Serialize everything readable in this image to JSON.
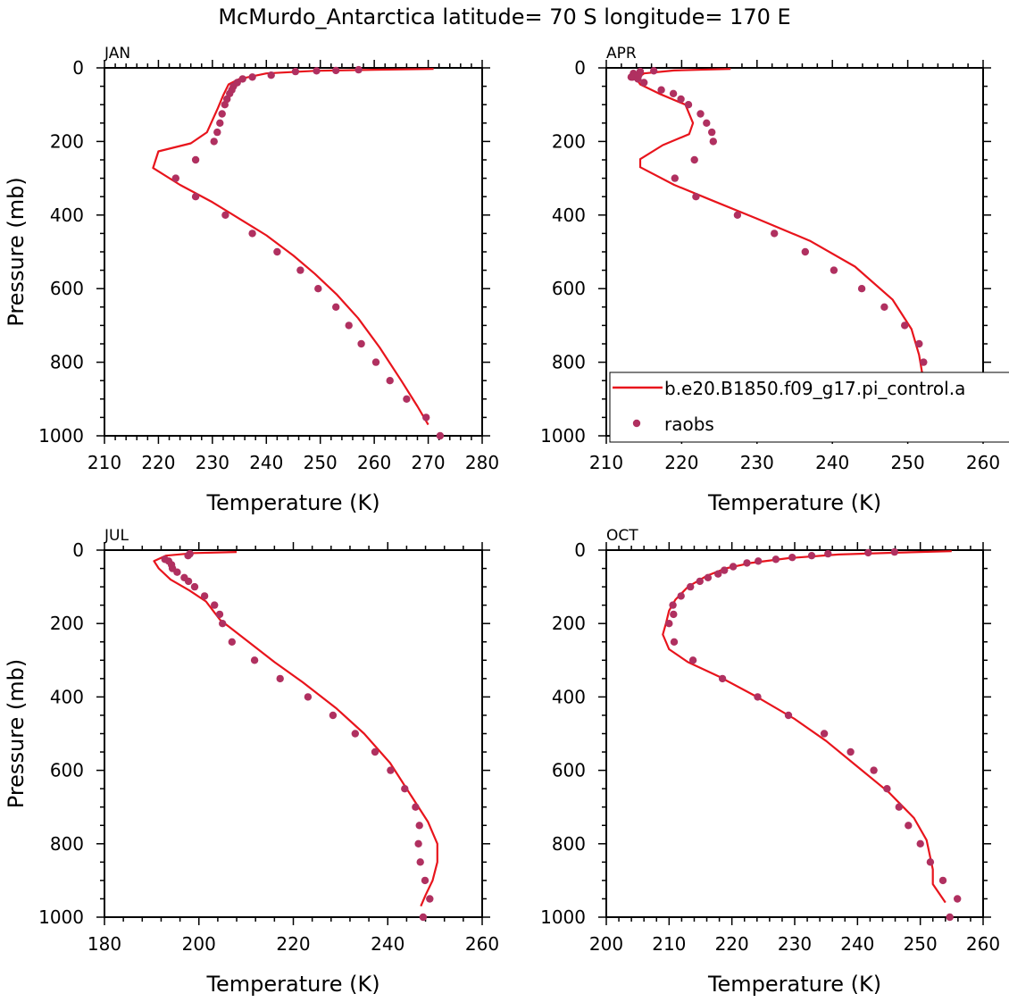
{
  "figure": {
    "title": "McMurdo_Antarctica  latitude= 70 S longitude= 170 E"
  },
  "colors": {
    "model_line": "#e8141c",
    "raobs_marker": "#b03060",
    "axes": "#000000"
  },
  "legend": {
    "model_label": "b.e20.B1850.f09_g17.pi_control.a",
    "raobs_label": "raobs"
  },
  "chart_data": [
    {
      "type": "scatter",
      "panel": "JAN",
      "title": "JAN",
      "xlabel": "Temperature (K)",
      "ylabel": "Pressure (mb)",
      "xlim": [
        210,
        280
      ],
      "ylim": [
        0,
        1000
      ],
      "y_inverted": true,
      "x_ticks": [
        210,
        220,
        230,
        240,
        250,
        260,
        270,
        280
      ],
      "y_ticks": [
        0,
        200,
        400,
        600,
        800,
        1000
      ],
      "series": [
        {
          "name": "b.e20.B1850.f09_g17.pi_control.a",
          "kind": "line",
          "points": [
            [
              271,
              3
            ],
            [
              260,
              5
            ],
            [
              249,
              8
            ],
            [
              240,
              15
            ],
            [
              235,
              30
            ],
            [
              233,
              45
            ],
            [
              232,
              75
            ],
            [
              231,
              110
            ],
            [
              229,
              175
            ],
            [
              226,
              205
            ],
            [
              220,
              227
            ],
            [
              219,
              272
            ],
            [
              224,
              318
            ],
            [
              230,
              365
            ],
            [
              235,
              410
            ],
            [
              240,
              455
            ],
            [
              245,
              510
            ],
            [
              249,
              560
            ],
            [
              253,
              615
            ],
            [
              257,
              680
            ],
            [
              261,
              760
            ],
            [
              265,
              850
            ],
            [
              268,
              920
            ],
            [
              270,
              970
            ]
          ]
        },
        {
          "name": "raobs",
          "kind": "scatter",
          "points": [
            [
              272.2,
              1000
            ],
            [
              269.6,
              950
            ],
            [
              266.0,
              900
            ],
            [
              262.9,
              850
            ],
            [
              260.3,
              800
            ],
            [
              257.6,
              750
            ],
            [
              255.3,
              700
            ],
            [
              252.9,
              650
            ],
            [
              249.6,
              600
            ],
            [
              246.3,
              550
            ],
            [
              242.0,
              500
            ],
            [
              237.4,
              450
            ],
            [
              232.4,
              400
            ],
            [
              226.9,
              350
            ],
            [
              223.2,
              300
            ],
            [
              226.9,
              250
            ],
            [
              230.3,
              200
            ],
            [
              230.9,
              175
            ],
            [
              231.4,
              150
            ],
            [
              231.8,
              125
            ],
            [
              232.3,
              100
            ],
            [
              232.7,
              85
            ],
            [
              233.2,
              70
            ],
            [
              233.6,
              60
            ],
            [
              233.9,
              50
            ],
            [
              234.6,
              40
            ],
            [
              235.6,
              30
            ],
            [
              237.4,
              25
            ],
            [
              240.9,
              20
            ],
            [
              245.4,
              10
            ],
            [
              249.3,
              8
            ],
            [
              252.9,
              7
            ],
            [
              257.1,
              5
            ]
          ]
        }
      ]
    },
    {
      "type": "scatter",
      "panel": "APR",
      "title": "APR",
      "xlabel": "Temperature (K)",
      "ylabel": "",
      "xlim": [
        210,
        260
      ],
      "ylim": [
        0,
        1000
      ],
      "y_inverted": true,
      "x_ticks": [
        210,
        220,
        230,
        240,
        250,
        260
      ],
      "y_ticks": [
        0,
        200,
        400,
        600,
        800,
        1000
      ],
      "legend_position": "bottom-right",
      "series": [
        {
          "name": "b.e20.B1850.f09_g17.pi_control.a",
          "kind": "line",
          "points": [
            [
              226.5,
              3
            ],
            [
              219,
              7
            ],
            [
              215,
              15
            ],
            [
              214,
              30
            ],
            [
              214.5,
              45
            ],
            [
              217,
              70
            ],
            [
              220.5,
              100
            ],
            [
              221.5,
              150
            ],
            [
              221,
              180
            ],
            [
              217.5,
              210
            ],
            [
              214.5,
              248
            ],
            [
              214.5,
              270
            ],
            [
              219,
              318
            ],
            [
              224,
              360
            ],
            [
              230,
              410
            ],
            [
              237,
              470
            ],
            [
              243,
              540
            ],
            [
              248,
              630
            ],
            [
              250.5,
              710
            ],
            [
              251.5,
              780
            ],
            [
              252,
              840
            ],
            [
              251,
              900
            ],
            [
              250,
              940
            ],
            [
              250,
              970
            ]
          ]
        },
        {
          "name": "raobs",
          "kind": "scatter",
          "points": [
            [
              256.2,
              1000
            ],
            [
              256.0,
              950
            ],
            [
              254.0,
              900
            ],
            [
              252.4,
              850
            ],
            [
              252.1,
              800
            ],
            [
              251.5,
              750
            ],
            [
              249.6,
              700
            ],
            [
              246.9,
              650
            ],
            [
              243.9,
              600
            ],
            [
              240.2,
              550
            ],
            [
              236.4,
              500
            ],
            [
              232.3,
              450
            ],
            [
              227.4,
              400
            ],
            [
              221.9,
              350
            ],
            [
              219.1,
              300
            ],
            [
              221.7,
              250
            ],
            [
              224.2,
              200
            ],
            [
              224.0,
              175
            ],
            [
              223.3,
              150
            ],
            [
              222.5,
              125
            ],
            [
              220.9,
              100
            ],
            [
              219.9,
              85
            ],
            [
              218.9,
              70
            ],
            [
              217.3,
              60
            ],
            [
              215.0,
              40
            ],
            [
              214.2,
              30
            ],
            [
              213.5,
              25
            ],
            [
              214.3,
              20
            ],
            [
              214.5,
              10
            ],
            [
              216.3,
              8
            ],
            [
              213.3,
              25
            ],
            [
              213.6,
              15
            ]
          ]
        }
      ]
    },
    {
      "type": "scatter",
      "panel": "JUL",
      "title": "JUL",
      "xlabel": "Temperature (K)",
      "ylabel": "Pressure (mb)",
      "xlim": [
        180,
        260
      ],
      "ylim": [
        0,
        1000
      ],
      "y_inverted": true,
      "x_ticks": [
        180,
        200,
        220,
        240,
        260
      ],
      "y_ticks": [
        0,
        200,
        400,
        600,
        800,
        1000
      ],
      "series": [
        {
          "name": "b.e20.B1850.f09_g17.pi_control.a",
          "kind": "line",
          "points": [
            [
              208,
              5
            ],
            [
              199,
              8
            ],
            [
              193,
              15
            ],
            [
              190.5,
              30
            ],
            [
              191.5,
              50
            ],
            [
              194,
              80
            ],
            [
              198,
              110
            ],
            [
              201.5,
              140
            ],
            [
              203,
              165
            ],
            [
              204.5,
              190
            ],
            [
              207,
              215
            ],
            [
              211,
              255
            ],
            [
              216,
              305
            ],
            [
              222,
              360
            ],
            [
              229,
              430
            ],
            [
              235,
              500
            ],
            [
              240.5,
              580
            ],
            [
              245,
              670
            ],
            [
              248.5,
              740
            ],
            [
              250.5,
              800
            ],
            [
              250.5,
              850
            ],
            [
              249.5,
              900
            ],
            [
              248,
              940
            ],
            [
              247,
              970
            ]
          ]
        },
        {
          "name": "raobs",
          "kind": "scatter",
          "points": [
            [
              247.5,
              1000
            ],
            [
              248.9,
              950
            ],
            [
              247.9,
              900
            ],
            [
              246.9,
              850
            ],
            [
              246.5,
              800
            ],
            [
              246.7,
              750
            ],
            [
              245.9,
              700
            ],
            [
              243.6,
              650
            ],
            [
              240.6,
              600
            ],
            [
              237.3,
              550
            ],
            [
              233.1,
              500
            ],
            [
              228.4,
              450
            ],
            [
              223.1,
              400
            ],
            [
              217.2,
              350
            ],
            [
              211.8,
              300
            ],
            [
              207.0,
              250
            ],
            [
              205.0,
              200
            ],
            [
              204.4,
              175
            ],
            [
              203.3,
              150
            ],
            [
              201.2,
              125
            ],
            [
              199.1,
              100
            ],
            [
              197.8,
              85
            ],
            [
              196.9,
              75
            ],
            [
              195.4,
              60
            ],
            [
              194.4,
              50
            ],
            [
              194.2,
              40
            ],
            [
              193.6,
              30
            ],
            [
              192.8,
              25
            ],
            [
              197.7,
              15
            ],
            [
              198.1,
              10
            ]
          ]
        }
      ]
    },
    {
      "type": "scatter",
      "panel": "OCT",
      "title": "OCT",
      "xlabel": "Temperature (K)",
      "ylabel": "",
      "xlim": [
        200,
        260
      ],
      "ylim": [
        0,
        1000
      ],
      "y_inverted": true,
      "x_ticks": [
        200,
        210,
        220,
        230,
        240,
        250,
        260
      ],
      "y_ticks": [
        0,
        200,
        400,
        600,
        800,
        1000
      ],
      "series": [
        {
          "name": "b.e20.B1850.f09_g17.pi_control.a",
          "kind": "line",
          "points": [
            [
              255,
              3
            ],
            [
              246,
              7
            ],
            [
              237,
              12
            ],
            [
              229,
              22
            ],
            [
              223,
              35
            ],
            [
              219,
              50
            ],
            [
              216,
              70
            ],
            [
              213,
              100
            ],
            [
              211,
              135
            ],
            [
              210,
              165
            ],
            [
              209.5,
              200
            ],
            [
              209,
              230
            ],
            [
              210,
              270
            ],
            [
              213,
              305
            ],
            [
              218,
              345
            ],
            [
              224,
              400
            ],
            [
              230,
              460
            ],
            [
              235,
              520
            ],
            [
              240,
              590
            ],
            [
              245,
              660
            ],
            [
              249,
              730
            ],
            [
              251,
              790
            ],
            [
              252,
              870
            ],
            [
              252,
              910
            ],
            [
              254,
              960
            ]
          ]
        },
        {
          "name": "raobs",
          "kind": "scatter",
          "points": [
            [
              254.7,
              1000
            ],
            [
              255.9,
              950
            ],
            [
              253.6,
              900
            ],
            [
              251.6,
              850
            ],
            [
              250.0,
              800
            ],
            [
              248.1,
              750
            ],
            [
              246.6,
              700
            ],
            [
              244.7,
              650
            ],
            [
              242.6,
              600
            ],
            [
              238.9,
              550
            ],
            [
              234.7,
              500
            ],
            [
              229.0,
              450
            ],
            [
              224.1,
              400
            ],
            [
              218.5,
              350
            ],
            [
              213.8,
              300
            ],
            [
              210.8,
              250
            ],
            [
              210.0,
              200
            ],
            [
              210.7,
              175
            ],
            [
              210.6,
              150
            ],
            [
              211.9,
              125
            ],
            [
              213.4,
              100
            ],
            [
              214.9,
              85
            ],
            [
              216.2,
              75
            ],
            [
              217.8,
              65
            ],
            [
              218.8,
              55
            ],
            [
              220.2,
              45
            ],
            [
              222.4,
              35
            ],
            [
              224.2,
              30
            ],
            [
              227.0,
              25
            ],
            [
              229.6,
              20
            ],
            [
              232.7,
              15
            ],
            [
              235.3,
              10
            ],
            [
              241.7,
              7
            ],
            [
              245.9,
              5
            ]
          ]
        }
      ]
    }
  ]
}
